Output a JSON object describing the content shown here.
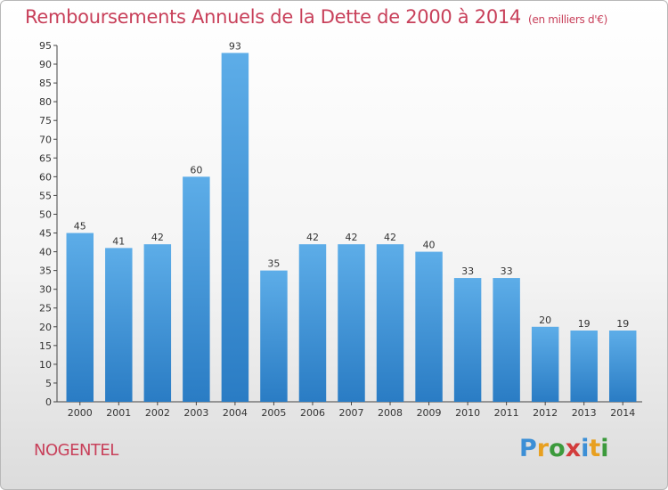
{
  "chart_data": {
    "type": "bar",
    "title": "Remboursements Annuels de la Dette de 2000 à 2014",
    "unit_note": "(en milliers d'€)",
    "categories": [
      "2000",
      "2001",
      "2002",
      "2003",
      "2004",
      "2005",
      "2006",
      "2007",
      "2008",
      "2009",
      "2010",
      "2011",
      "2012",
      "2013",
      "2014"
    ],
    "values": [
      45,
      41,
      42,
      60,
      93,
      35,
      42,
      42,
      42,
      40,
      33,
      33,
      20,
      19,
      19
    ],
    "ylim": [
      0,
      95
    ],
    "yticks": [
      0,
      5,
      10,
      15,
      20,
      25,
      30,
      35,
      40,
      45,
      50,
      55,
      60,
      65,
      70,
      75,
      80,
      85,
      90,
      95
    ],
    "xlabel": "",
    "ylabel": "",
    "grid": false,
    "legend": "none",
    "bar_color_top": "#5dade8",
    "bar_color_bottom": "#2a7cc4"
  },
  "commune": "NOGENTEL",
  "logo": {
    "letters": [
      "P",
      "r",
      "o",
      "x",
      "i",
      "t",
      "i"
    ]
  }
}
